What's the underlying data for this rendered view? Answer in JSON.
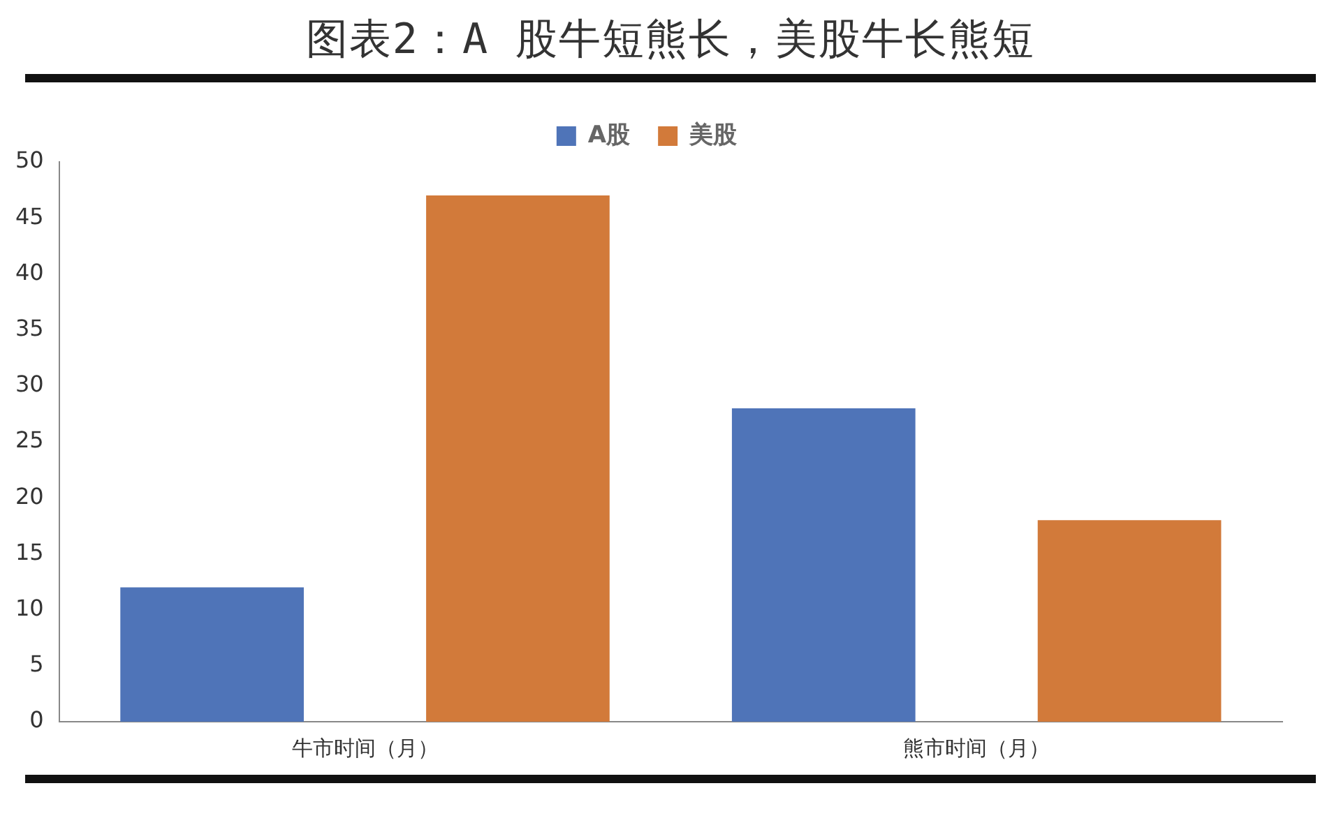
{
  "chart_data": {
    "type": "bar",
    "title": "图表2：A 股牛短熊长，美股牛长熊短",
    "categories": [
      "牛市时间（月）",
      "熊市时间（月）"
    ],
    "series": [
      {
        "name": "A股",
        "color": "#4f74b8",
        "values": [
          12,
          28
        ]
      },
      {
        "name": "美股",
        "color": "#d27a3a",
        "values": [
          47,
          18
        ]
      }
    ],
    "ylim": [
      0,
      50
    ],
    "yticks": [
      0,
      5,
      10,
      15,
      20,
      25,
      30,
      35,
      40,
      45,
      50
    ],
    "grid": false,
    "legend": "top"
  }
}
